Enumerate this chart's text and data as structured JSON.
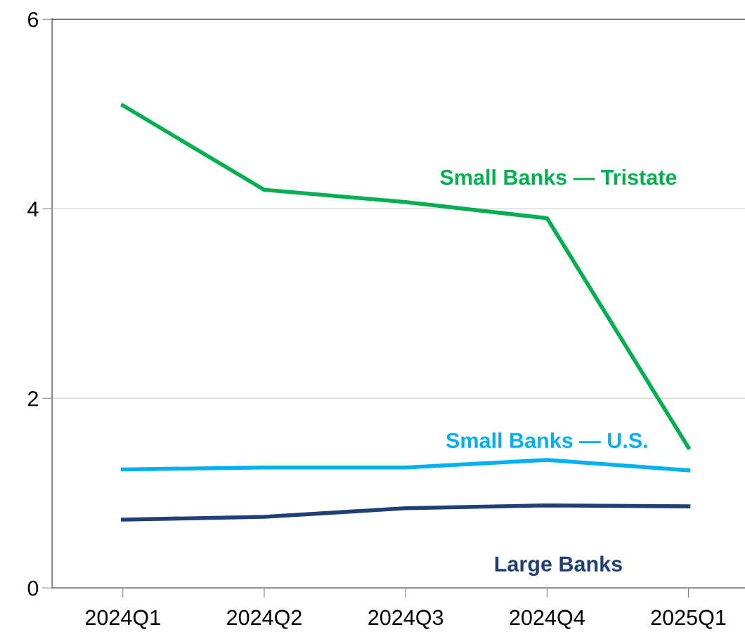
{
  "chart_data": {
    "type": "line",
    "categories": [
      "2024Q1",
      "2024Q2",
      "2024Q3",
      "2024Q4",
      "2025Q1"
    ],
    "series": [
      {
        "name": "Small Banks — Tristate",
        "color": "#00b050",
        "values": [
          5.09,
          4.2,
          4.07,
          3.9,
          1.48
        ]
      },
      {
        "name": "Small Banks — U.S.",
        "color": "#00b0f0",
        "values": [
          1.25,
          1.27,
          1.27,
          1.35,
          1.24
        ]
      },
      {
        "name": "Large Banks",
        "color": "#1f3f77",
        "values": [
          0.72,
          0.75,
          0.84,
          0.87,
          0.86
        ]
      }
    ],
    "ylim": [
      0,
      6
    ],
    "yticks": [
      0,
      2,
      4,
      6
    ],
    "grid": "y",
    "legend": false,
    "marker": "none",
    "line_style": "solid"
  }
}
